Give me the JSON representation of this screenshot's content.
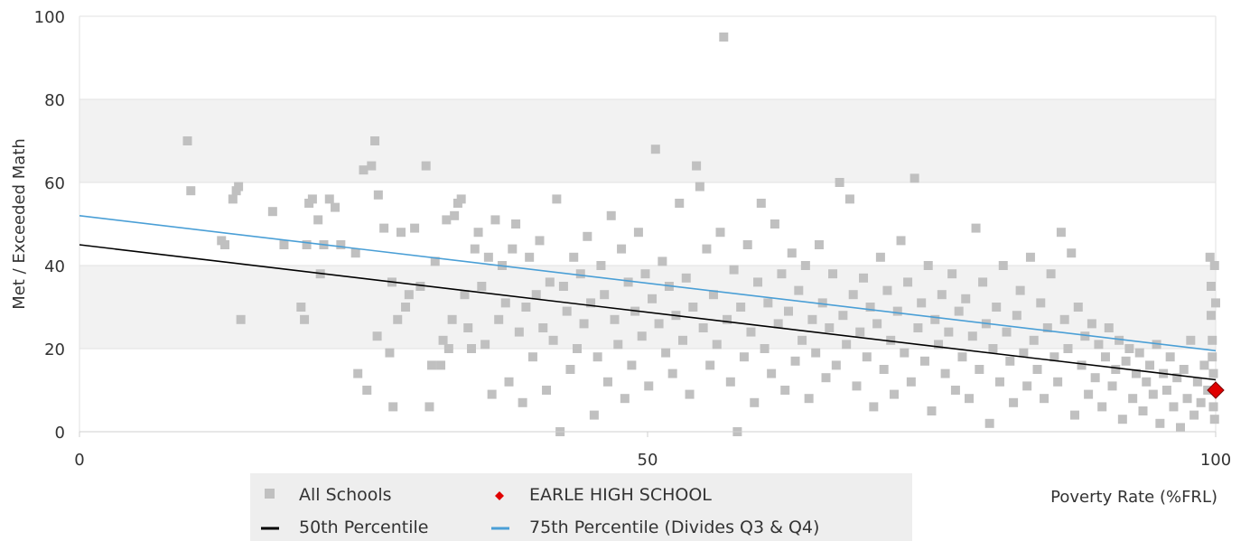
{
  "chart_data": {
    "type": "scatter",
    "xlabel": "Poverty Rate (%FRL)",
    "ylabel": "Met / Exceeded Math",
    "xlim": [
      0,
      100
    ],
    "ylim": [
      0,
      100
    ],
    "x_ticks": [
      0,
      50,
      100
    ],
    "x_tick_labels": [
      "0",
      "50",
      "100"
    ],
    "y_ticks": [
      0,
      20,
      40,
      60,
      80,
      100
    ],
    "y_tick_labels": [
      "0",
      "20",
      "40",
      "60",
      "80",
      "100"
    ],
    "grid": "horizontal bands",
    "legend_position": "bottom",
    "colors": {
      "all_schools": "#c0c0c0",
      "highlight_school": "#e00000",
      "p50": "#000000",
      "p75": "#4a9fd6",
      "band": "#f2f2f2",
      "legend_bg": "#eeeeee"
    },
    "legend": {
      "all_schools": "All Schools",
      "highlight_school": "EARLE HIGH SCHOOL",
      "p50": "50th Percentile",
      "p75": "75th Percentile (Divides Q3 & Q4)"
    },
    "series": [
      {
        "name": "All Schools",
        "marker": "square",
        "points": [
          [
            9.5,
            70
          ],
          [
            9.8,
            58
          ],
          [
            12.5,
            46
          ],
          [
            12.8,
            45
          ],
          [
            13.5,
            56
          ],
          [
            13.8,
            58
          ],
          [
            14,
            59
          ],
          [
            14.2,
            27
          ],
          [
            17,
            53
          ],
          [
            18,
            45
          ],
          [
            19.5,
            30
          ],
          [
            19.8,
            27
          ],
          [
            20,
            45
          ],
          [
            20.2,
            55
          ],
          [
            20.5,
            56
          ],
          [
            21,
            51
          ],
          [
            21.2,
            38
          ],
          [
            21.5,
            45
          ],
          [
            22,
            56
          ],
          [
            22.5,
            54
          ],
          [
            23,
            45
          ],
          [
            24.3,
            43
          ],
          [
            24.5,
            14
          ],
          [
            25,
            63
          ],
          [
            25.3,
            10
          ],
          [
            25.7,
            64
          ],
          [
            26,
            70
          ],
          [
            26.3,
            57
          ],
          [
            26.2,
            23
          ],
          [
            26.8,
            49
          ],
          [
            27.3,
            19
          ],
          [
            27.5,
            36
          ],
          [
            27.6,
            6
          ],
          [
            28,
            27
          ],
          [
            28.3,
            48
          ],
          [
            28.7,
            30
          ],
          [
            29,
            33
          ],
          [
            29.5,
            49
          ],
          [
            30,
            35
          ],
          [
            30.5,
            64
          ],
          [
            30.8,
            6
          ],
          [
            31,
            16
          ],
          [
            31.3,
            41
          ],
          [
            31.8,
            16
          ],
          [
            32,
            22
          ],
          [
            32.3,
            51
          ],
          [
            32.5,
            20
          ],
          [
            32.8,
            27
          ],
          [
            33,
            52
          ],
          [
            33.3,
            55
          ],
          [
            33.6,
            56
          ],
          [
            33.9,
            33
          ],
          [
            34.2,
            25
          ],
          [
            34.5,
            20
          ],
          [
            34.8,
            44
          ],
          [
            35.1,
            48
          ],
          [
            35.4,
            35
          ],
          [
            35.7,
            21
          ],
          [
            36,
            42
          ],
          [
            36.3,
            9
          ],
          [
            36.6,
            51
          ],
          [
            36.9,
            27
          ],
          [
            37.2,
            40
          ],
          [
            37.5,
            31
          ],
          [
            37.8,
            12
          ],
          [
            38.1,
            44
          ],
          [
            38.4,
            50
          ],
          [
            38.7,
            24
          ],
          [
            39,
            7
          ],
          [
            39.3,
            30
          ],
          [
            39.6,
            42
          ],
          [
            39.9,
            18
          ],
          [
            40.2,
            33
          ],
          [
            40.5,
            46
          ],
          [
            40.8,
            25
          ],
          [
            41.1,
            10
          ],
          [
            41.4,
            36
          ],
          [
            41.7,
            22
          ],
          [
            42,
            56
          ],
          [
            42.3,
            0
          ],
          [
            42.6,
            35
          ],
          [
            42.9,
            29
          ],
          [
            43.2,
            15
          ],
          [
            43.5,
            42
          ],
          [
            43.8,
            20
          ],
          [
            44.1,
            38
          ],
          [
            44.4,
            26
          ],
          [
            44.7,
            47
          ],
          [
            45,
            31
          ],
          [
            45.3,
            4
          ],
          [
            45.6,
            18
          ],
          [
            45.9,
            40
          ],
          [
            46.2,
            33
          ],
          [
            46.5,
            12
          ],
          [
            46.8,
            52
          ],
          [
            47.1,
            27
          ],
          [
            47.4,
            21
          ],
          [
            47.7,
            44
          ],
          [
            48,
            8
          ],
          [
            48.3,
            36
          ],
          [
            48.6,
            16
          ],
          [
            48.9,
            29
          ],
          [
            49.2,
            48
          ],
          [
            49.5,
            23
          ],
          [
            49.8,
            38
          ],
          [
            50.1,
            11
          ],
          [
            50.4,
            32
          ],
          [
            50.7,
            68
          ],
          [
            51,
            26
          ],
          [
            51.3,
            41
          ],
          [
            51.6,
            19
          ],
          [
            51.9,
            35
          ],
          [
            52.2,
            14
          ],
          [
            52.5,
            28
          ],
          [
            52.8,
            55
          ],
          [
            53.1,
            22
          ],
          [
            53.4,
            37
          ],
          [
            53.7,
            9
          ],
          [
            54,
            30
          ],
          [
            54.3,
            64
          ],
          [
            54.6,
            59
          ],
          [
            54.9,
            25
          ],
          [
            55.2,
            44
          ],
          [
            55.5,
            16
          ],
          [
            55.8,
            33
          ],
          [
            56.1,
            21
          ],
          [
            56.4,
            48
          ],
          [
            56.7,
            95
          ],
          [
            57,
            27
          ],
          [
            57.3,
            12
          ],
          [
            57.6,
            39
          ],
          [
            57.9,
            0
          ],
          [
            58.2,
            30
          ],
          [
            58.5,
            18
          ],
          [
            58.8,
            45
          ],
          [
            59.1,
            24
          ],
          [
            59.4,
            7
          ],
          [
            59.7,
            36
          ],
          [
            60,
            55
          ],
          [
            60.3,
            20
          ],
          [
            60.6,
            31
          ],
          [
            60.9,
            14
          ],
          [
            61.2,
            50
          ],
          [
            61.5,
            26
          ],
          [
            61.8,
            38
          ],
          [
            62.1,
            10
          ],
          [
            62.4,
            29
          ],
          [
            62.7,
            43
          ],
          [
            63,
            17
          ],
          [
            63.3,
            34
          ],
          [
            63.6,
            22
          ],
          [
            63.9,
            40
          ],
          [
            64.2,
            8
          ],
          [
            64.5,
            27
          ],
          [
            64.8,
            19
          ],
          [
            65.1,
            45
          ],
          [
            65.4,
            31
          ],
          [
            65.7,
            13
          ],
          [
            66,
            25
          ],
          [
            66.3,
            38
          ],
          [
            66.6,
            16
          ],
          [
            66.9,
            60
          ],
          [
            67.2,
            28
          ],
          [
            67.5,
            21
          ],
          [
            67.8,
            56
          ],
          [
            68.1,
            33
          ],
          [
            68.4,
            11
          ],
          [
            68.7,
            24
          ],
          [
            69,
            37
          ],
          [
            69.3,
            18
          ],
          [
            69.6,
            30
          ],
          [
            69.9,
            6
          ],
          [
            70.2,
            26
          ],
          [
            70.5,
            42
          ],
          [
            70.8,
            15
          ],
          [
            71.1,
            34
          ],
          [
            71.4,
            22
          ],
          [
            71.7,
            9
          ],
          [
            72,
            29
          ],
          [
            72.3,
            46
          ],
          [
            72.6,
            19
          ],
          [
            72.9,
            36
          ],
          [
            73.2,
            12
          ],
          [
            73.5,
            61
          ],
          [
            73.8,
            25
          ],
          [
            74.1,
            31
          ],
          [
            74.4,
            17
          ],
          [
            74.7,
            40
          ],
          [
            75,
            5
          ],
          [
            75.3,
            27
          ],
          [
            75.6,
            21
          ],
          [
            75.9,
            33
          ],
          [
            76.2,
            14
          ],
          [
            76.5,
            24
          ],
          [
            76.8,
            38
          ],
          [
            77.1,
            10
          ],
          [
            77.4,
            29
          ],
          [
            77.7,
            18
          ],
          [
            78,
            32
          ],
          [
            78.3,
            8
          ],
          [
            78.6,
            23
          ],
          [
            78.9,
            49
          ],
          [
            79.2,
            15
          ],
          [
            79.5,
            36
          ],
          [
            79.8,
            26
          ],
          [
            80.1,
            2
          ],
          [
            80.4,
            20
          ],
          [
            80.7,
            30
          ],
          [
            81,
            12
          ],
          [
            81.3,
            40
          ],
          [
            81.6,
            24
          ],
          [
            81.9,
            17
          ],
          [
            82.2,
            7
          ],
          [
            82.5,
            28
          ],
          [
            82.8,
            34
          ],
          [
            83.1,
            19
          ],
          [
            83.4,
            11
          ],
          [
            83.7,
            42
          ],
          [
            84,
            22
          ],
          [
            84.3,
            15
          ],
          [
            84.6,
            31
          ],
          [
            84.9,
            8
          ],
          [
            85.2,
            25
          ],
          [
            85.5,
            38
          ],
          [
            85.8,
            18
          ],
          [
            86.1,
            12
          ],
          [
            86.4,
            48
          ],
          [
            86.7,
            27
          ],
          [
            87,
            20
          ],
          [
            87.3,
            43
          ],
          [
            87.6,
            4
          ],
          [
            87.9,
            30
          ],
          [
            88.2,
            16
          ],
          [
            88.5,
            23
          ],
          [
            88.8,
            9
          ],
          [
            89.1,
            26
          ],
          [
            89.4,
            13
          ],
          [
            89.7,
            21
          ],
          [
            90,
            6
          ],
          [
            90.3,
            18
          ],
          [
            90.6,
            25
          ],
          [
            90.9,
            11
          ],
          [
            91.2,
            15
          ],
          [
            91.5,
            22
          ],
          [
            91.8,
            3
          ],
          [
            92.1,
            17
          ],
          [
            92.4,
            20
          ],
          [
            92.7,
            8
          ],
          [
            93,
            14
          ],
          [
            93.3,
            19
          ],
          [
            93.6,
            5
          ],
          [
            93.9,
            12
          ],
          [
            94.2,
            16
          ],
          [
            94.5,
            9
          ],
          [
            94.8,
            21
          ],
          [
            95.1,
            2
          ],
          [
            95.4,
            14
          ],
          [
            95.7,
            10
          ],
          [
            96,
            18
          ],
          [
            96.3,
            6
          ],
          [
            96.6,
            13
          ],
          [
            96.9,
            1
          ],
          [
            97.2,
            15
          ],
          [
            97.5,
            8
          ],
          [
            97.8,
            22
          ],
          [
            98.1,
            4
          ],
          [
            98.4,
            12
          ],
          [
            98.7,
            7
          ],
          [
            99,
            16
          ],
          [
            99.3,
            10
          ],
          [
            99.5,
            42
          ],
          [
            99.6,
            35
          ],
          [
            99.6,
            28
          ],
          [
            99.7,
            22
          ],
          [
            99.7,
            18
          ],
          [
            99.8,
            14
          ],
          [
            99.8,
            6
          ],
          [
            99.9,
            3
          ],
          [
            99.9,
            40
          ],
          [
            100,
            31
          ]
        ]
      },
      {
        "name": "EARLE HIGH SCHOOL",
        "marker": "diamond",
        "points": [
          [
            100,
            10
          ]
        ]
      },
      {
        "name": "50th Percentile",
        "type": "line",
        "x": [
          0,
          100
        ],
        "y": [
          45,
          12.5
        ]
      },
      {
        "name": "75th Percentile (Divides Q3 & Q4)",
        "type": "line",
        "x": [
          0,
          100
        ],
        "y": [
          52,
          19.5
        ]
      }
    ]
  }
}
